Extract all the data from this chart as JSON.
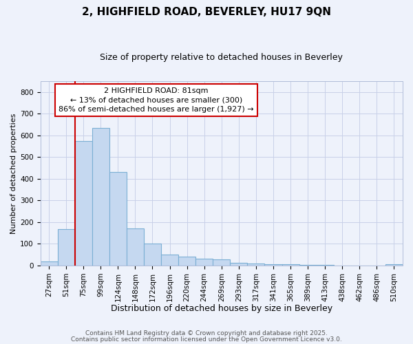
{
  "title1": "2, HIGHFIELD ROAD, BEVERLEY, HU17 9QN",
  "title2": "Size of property relative to detached houses in Beverley",
  "xlabel": "Distribution of detached houses by size in Beverley",
  "ylabel": "Number of detached properties",
  "bin_labels": [
    "27sqm",
    "51sqm",
    "75sqm",
    "99sqm",
    "124sqm",
    "148sqm",
    "172sqm",
    "196sqm",
    "220sqm",
    "244sqm",
    "269sqm",
    "293sqm",
    "317sqm",
    "341sqm",
    "365sqm",
    "389sqm",
    "413sqm",
    "438sqm",
    "462sqm",
    "486sqm",
    "510sqm"
  ],
  "values": [
    20,
    168,
    575,
    635,
    430,
    170,
    103,
    52,
    40,
    33,
    28,
    12,
    10,
    5,
    5,
    3,
    2,
    1,
    1,
    1,
    5
  ],
  "bar_color": "#c5d8f0",
  "bar_edge_color": "#7bafd4",
  "annotation_text": "2 HIGHFIELD ROAD: 81sqm\n← 13% of detached houses are smaller (300)\n86% of semi-detached houses are larger (1,927) →",
  "annotation_box_facecolor": "#ffffff",
  "annotation_box_edgecolor": "#cc0000",
  "red_line_bin_index": 2,
  "ylim": [
    0,
    850
  ],
  "yticks": [
    0,
    100,
    200,
    300,
    400,
    500,
    600,
    700,
    800
  ],
  "footer1": "Contains HM Land Registry data © Crown copyright and database right 2025.",
  "footer2": "Contains public sector information licensed under the Open Government Licence v3.0.",
  "bg_color": "#eef2fb",
  "plot_bg_color": "#eef2fb",
  "grid_color": "#c8d0e8",
  "title1_fontsize": 11,
  "title2_fontsize": 9,
  "xlabel_fontsize": 9,
  "ylabel_fontsize": 8,
  "tick_fontsize": 7.5,
  "annotation_fontsize": 8,
  "footer_fontsize": 6.5
}
